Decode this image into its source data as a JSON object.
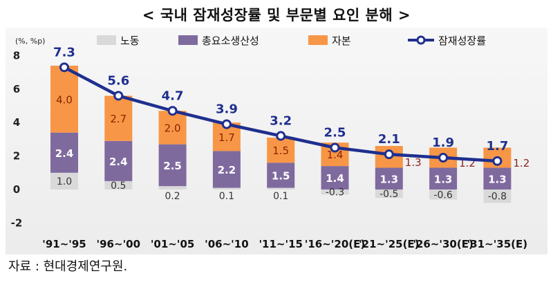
{
  "title": "< 국내 잠재성장률 및 부문별 요인 분해 >",
  "source": "자료 : 현대경제연구원.",
  "unit_label": "(%, %p)",
  "colors": {
    "labor": "#d9d9d9",
    "tfp": "#7f6a9e",
    "capital": "#f79646",
    "potential": "#1f2f8f",
    "capital_label_outside": "#8b2323"
  },
  "chart_data": {
    "type": "bar",
    "stacked": true,
    "categories": [
      "'91~'95",
      "'96~'00",
      "'01~'05",
      "'06~'10",
      "'11~'15",
      "'16~'20(E)",
      "'21~'25(E)",
      "'26~'30(E)",
      "'31~'35(E)"
    ],
    "series": [
      {
        "name": "노동",
        "type": "bar",
        "values": [
          1.0,
          0.5,
          0.2,
          0.1,
          0.1,
          -0.3,
          -0.5,
          -0.6,
          -0.8
        ]
      },
      {
        "name": "총요소생산성",
        "type": "bar",
        "values": [
          2.4,
          2.4,
          2.5,
          2.2,
          1.5,
          1.4,
          1.3,
          1.3,
          1.3
        ]
      },
      {
        "name": "자본",
        "type": "bar",
        "values": [
          4.0,
          2.7,
          2.0,
          1.7,
          1.5,
          1.4,
          1.3,
          1.2,
          1.2
        ]
      },
      {
        "name": "잠재성장률",
        "type": "line",
        "values": [
          7.3,
          5.6,
          4.7,
          3.9,
          3.2,
          2.5,
          2.1,
          1.9,
          1.7
        ]
      }
    ],
    "ylim": [
      -2,
      8
    ],
    "yticks": [
      -2,
      0,
      2,
      4,
      6,
      8
    ],
    "legend_position": "top",
    "grid": false
  }
}
